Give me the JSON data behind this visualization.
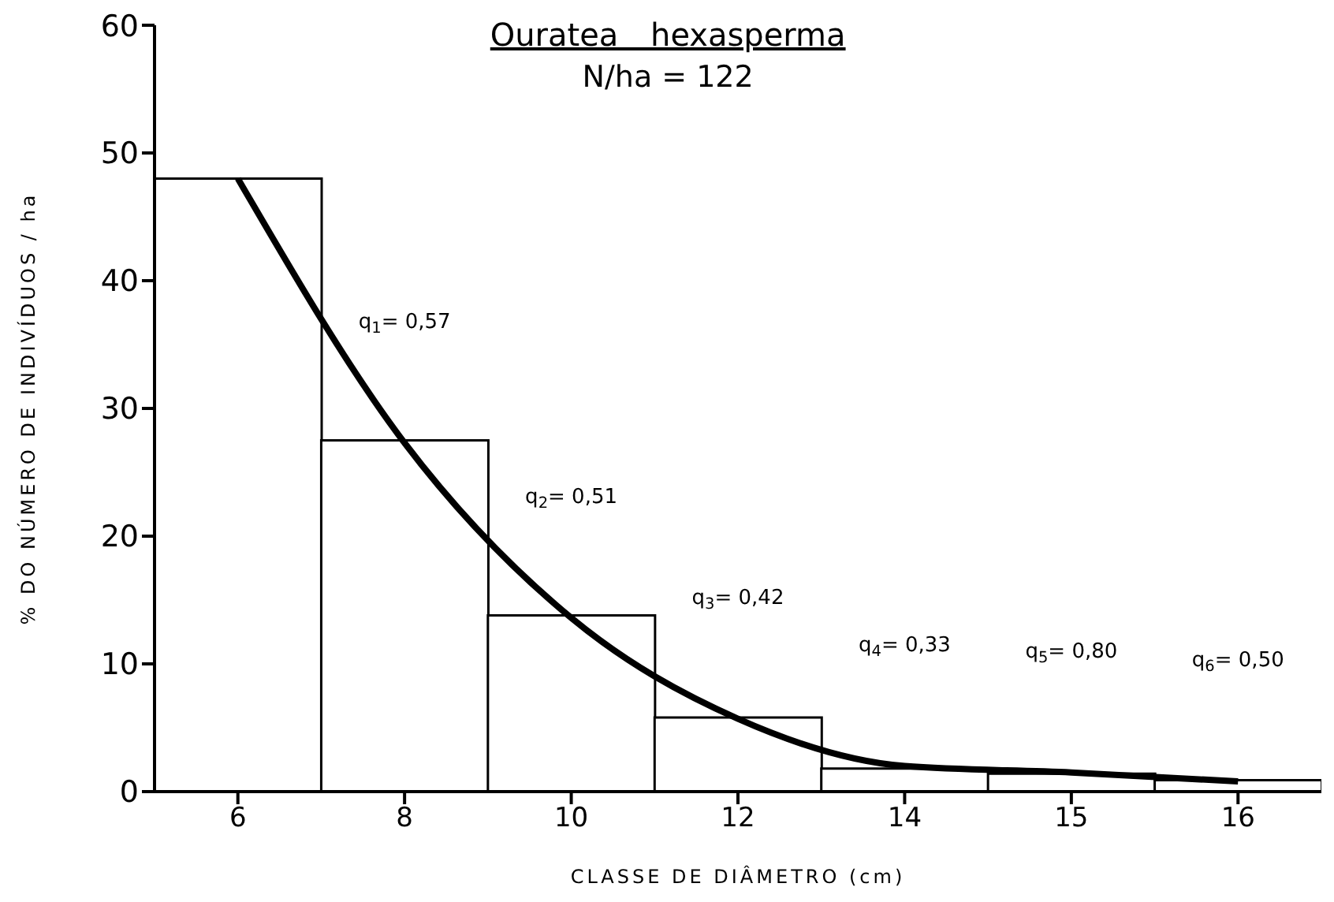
{
  "chart_data": {
    "type": "bar",
    "title": "Ouratea hexasperma",
    "subtitle": "N/ha = 122",
    "xlabel": "CLASSE DE DIÂMETRO (cm)",
    "ylabel": "% DO NÚMERO DE INDIVÍDUOS / ha",
    "categories": [
      "6",
      "8",
      "10",
      "12",
      "14",
      "15",
      "16"
    ],
    "series": [
      {
        "color": "#ffffff",
        "values": [
          48,
          27.5,
          13.8,
          5.8,
          1.8,
          1.4,
          0.9
        ]
      },
      {
        "type": "line",
        "color": "#000000",
        "values": [
          48,
          27.3,
          13.6,
          5.7,
          2,
          1.5,
          0.8
        ]
      }
    ],
    "annotations": [
      "q$_{1}$= 0,57",
      "q$_{2}$= 0,51",
      "q$_{3}$= 0,42",
      "q$_{4}$= 0,33",
      "q$_{5}$= 0,80",
      "q$_{6}$= 0,50"
    ],
    "ylim": [
      0,
      60
    ],
    "yticks": [
      0,
      10,
      20,
      30,
      40,
      50,
      60
    ],
    "grid": false,
    "legend": false,
    "marker": "none",
    "line_style": "solid"
  }
}
